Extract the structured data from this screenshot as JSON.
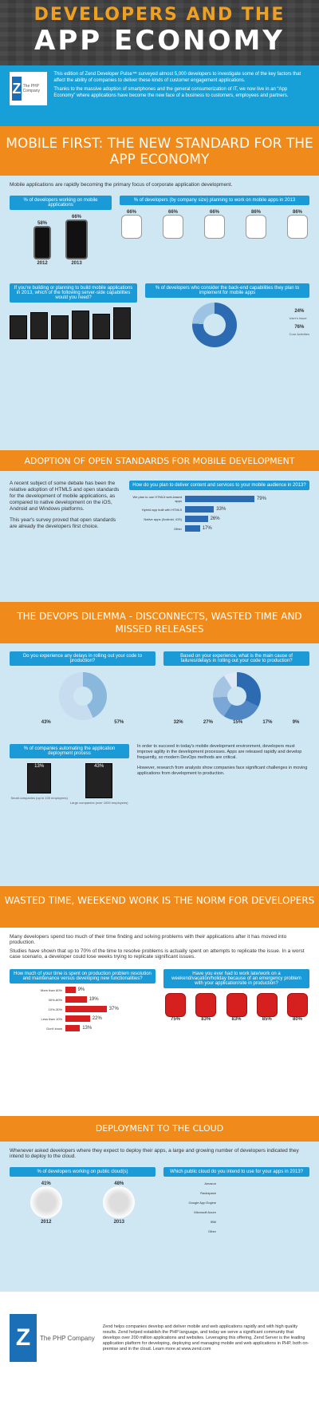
{
  "header": {
    "title_line1": "DEVELOPERS AND THE",
    "title_line2": "APP ECONOMY"
  },
  "intro": {
    "logo_letter": "zend",
    "logo_tagline": "The PHP Company",
    "para1": "This edition of Zend Developer Pulse™ surveyed almost 5,000 developers to investigate some of the key factors that affect the ability of companies to deliver these kinds of customer engagement applications.",
    "para2": "Thanks to the massive adoption of smartphones and the general consumerization of IT, we now live in an “App Economy” where applications have become the new face of a business to customers, employees and partners."
  },
  "section1": {
    "title": "MOBILE FIRST: THE NEW STANDARD FOR THE APP ECONOMY",
    "lead": "Mobile applications are rapidly becoming the primary focus of corporate application development.",
    "p1_head": "% of developers working on mobile applications",
    "p1_vals": {
      "y2012": "58%",
      "y2013": "66%"
    },
    "p1_years": {
      "a": "2012",
      "b": "2013"
    },
    "p2_head": "% of developers (by company size) planning to work on mobile apps in 2013",
    "p2_vals": [
      "66%",
      "66%",
      "66%",
      "86%",
      "86%"
    ],
    "p3_head": "If you're building or planning to build mobile applications in 2013, which of the following server-side capabilities would you need?",
    "p4_head": "% of developers who consider the back-end capabilities they plan to implement for mobile apps",
    "p4_vals": {
      "a": "24%",
      "a_label": "User's Issue",
      "b": "76%",
      "b_label": "Core Activities"
    }
  },
  "section2": {
    "title": "ADOPTION OF OPEN STANDARDS FOR MOBILE DEVELOPMENT",
    "text1": "A recent subject of some debate has been the relative adoption of HTML5 and open standards for the development of mobile applications, as compared to native development on the iOS, Android and Windows platforms.",
    "text2": "This year's survey proved that open standards are already the developers first choice.",
    "chart_head": "How do you plan to deliver content and services to your mobile audience in 2013?",
    "bars": [
      {
        "label": "We plan to use HTML5 web-based apps",
        "value": "79%"
      },
      {
        "label": "Hybrid app built with HTML5",
        "value": "33%"
      },
      {
        "label": "Native apps (Android, iOS)",
        "value": "26%"
      },
      {
        "label": "Other",
        "value": "17%"
      }
    ]
  },
  "section3": {
    "title": "THE DEVOPS DILEMMA - DISCONNECTS, WASTED TIME AND MISSED RELEASES",
    "q1": "Do you experience any delays in rolling out your code to production?",
    "q1_vals": {
      "yes": "43%",
      "no": "57%"
    },
    "q2": "Based on your experience, what is the main cause of failures/delays in rolling out your code to production?",
    "q2_vals": [
      "32%",
      "27%",
      "15%",
      "17%",
      "9%"
    ],
    "q3": "% of companies automating the application deployment process",
    "q3_vals": {
      "small": "13%",
      "large": "43%"
    },
    "q3_labels": {
      "small": "Small companies (up to 100 employees)",
      "large": "Large companies (over 1000 employees)"
    },
    "text1": "In order to succeed in today's mobile development environment, developers must improve agility in the development processes. Apps are released rapidly and develop frequently, so modern DevOps methods are critical.",
    "text2": "However, research from analysts show companies face significant challenges in moving applications from development to production."
  },
  "section4": {
    "title": "WASTED TIME, WEEKEND WORK IS THE NORM FOR DEVELOPERS",
    "lead1": "Many developers spend too much of their time finding and solving problems with their applications after it has moved into production.",
    "lead2": "Studies have shown that up to 70% of the time to resolve problems is actually spent on attempts to replicate the issue. In a worst case scenario, a developer could lose weeks trying to replicate significant issues.",
    "q1": "How much of your time is spent on production problem resolution and maintenance versus developing new functionalities?",
    "q1_bars": [
      {
        "label": "More than 60%",
        "value": "9%"
      },
      {
        "label": "30%-60%",
        "value": "19%"
      },
      {
        "label": "10%-30%",
        "value": "37%"
      },
      {
        "label": "Less than 10%",
        "value": "22%"
      },
      {
        "label": "Don't know",
        "value": "13%"
      }
    ],
    "q2": "Have you ever had to work late/work on a weekend/vacation/holiday because of an emergency problem with your application/site in production?",
    "q2_vals": [
      "75%",
      "83%",
      "83%",
      "85%",
      "80%"
    ]
  },
  "section5": {
    "title": "DEPLOYMENT TO THE CLOUD",
    "lead": "Whenever asked developers where they expect to deploy their apps, a large and growing number of developers indicated they intend to deploy to the cloud.",
    "q1": "% of developers working on public cloud(s)",
    "q1_vals": {
      "a": "41%",
      "b": "48%"
    },
    "q1_years": {
      "a": "2012",
      "b": "2013"
    },
    "q2": "Which public cloud do you intend to use for your apps in 2013?",
    "q2_bars": [
      {
        "label": "Amazon",
        "value": ""
      },
      {
        "label": "Rackspace",
        "value": ""
      },
      {
        "label": "Google App Engine",
        "value": ""
      },
      {
        "label": "Microsoft Azure",
        "value": ""
      },
      {
        "label": "IBM",
        "value": ""
      },
      {
        "label": "Other",
        "value": ""
      }
    ]
  },
  "footer": {
    "logo_letter": "zend",
    "brand": "The PHP Company",
    "text": "Zend helps companies develop and deliver mobile and web applications rapidly and with high quality results. Zend helped establish the PHP language, and today we serve a significant community that develops over 200 million applications and websites. Leveraging this offering, Zend Server is the leading application platform for developing, deploying and managing mobile and web applications in PHP, both on-premise and in the cloud. Learn more at www.zend.com"
  },
  "colors": {
    "orange": "#f08a1a",
    "blue": "#1a9ad6",
    "dark": "#3b3b3b",
    "red": "#d62020",
    "light_blue": "#cfe6f3"
  }
}
